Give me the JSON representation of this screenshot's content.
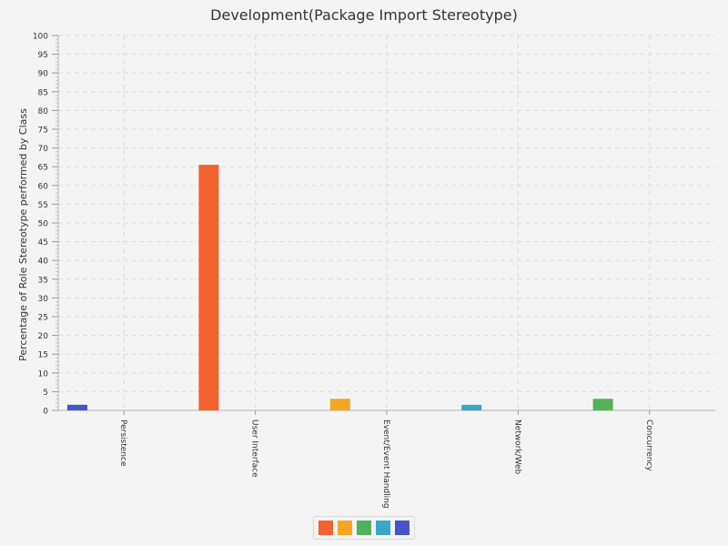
{
  "chart_data": {
    "type": "bar",
    "title": "Development(Package Import Stereotype)",
    "xlabel": "",
    "ylabel": "Percentage of Role Stereotype performed by Class",
    "ylim": [
      0,
      100
    ],
    "y_major_ticks": [
      0,
      5,
      10,
      15,
      20,
      25,
      30,
      35,
      40,
      45,
      50,
      55,
      60,
      65,
      70,
      75,
      80,
      85,
      90,
      95,
      100
    ],
    "categories": [
      "Persistence",
      "User Interface",
      "Event/Event Handling",
      "Network/Web",
      "Concurrency"
    ],
    "series": [
      {
        "color": "#f26130",
        "values": [
          0,
          65.5,
          0,
          0,
          0
        ]
      },
      {
        "color": "#f5a623",
        "values": [
          0,
          0,
          3.1,
          0,
          0
        ]
      },
      {
        "color": "#52b25a",
        "values": [
          0,
          0,
          0,
          0,
          3.1
        ]
      },
      {
        "color": "#3aa5c8",
        "values": [
          0,
          0,
          0,
          1.5,
          0
        ]
      },
      {
        "color": "#4455cc",
        "values": [
          1.5,
          0,
          0,
          0,
          0
        ]
      }
    ],
    "value_placement": [
      4,
      0,
      1,
      3,
      2
    ],
    "grid": true,
    "legend_position": "bottom-center"
  }
}
